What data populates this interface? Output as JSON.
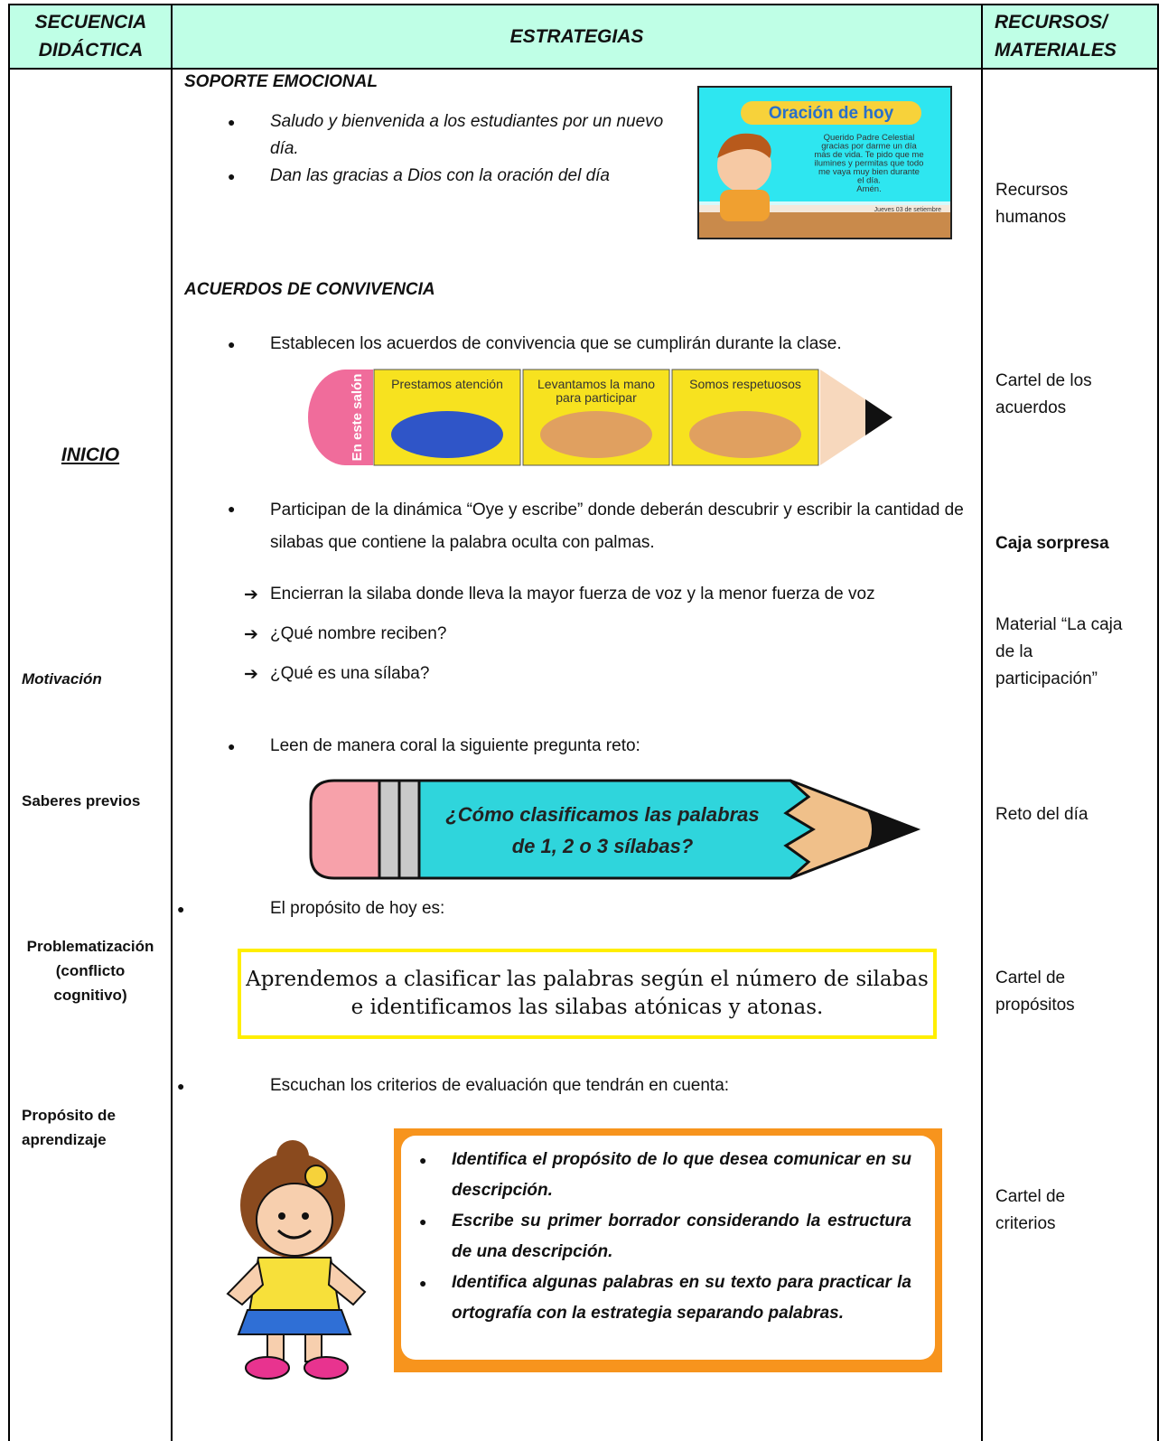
{
  "table": {
    "headers": [
      "SECUENCIA DIDÁCTICA",
      "ESTRATEGIAS",
      "RECURSOS/ MATERIALES"
    ],
    "sequence": {
      "main": "INICIO",
      "stages": [
        "Motivación",
        "Saberes previos",
        "Problematización (conflicto cognitivo)",
        "Propósito de aprendizaje"
      ]
    },
    "strategies": {
      "emotional": {
        "title": "SOPORTE EMOCIONAL",
        "bullets": [
          "Saludo y bienvenida a los estudiantes por un nuevo día.",
          "Dan las gracias a Dios con la oración del día"
        ],
        "prayer_card": {
          "title": "Oración de hoy",
          "lines": [
            "Querido Padre Celestial",
            "gracias por darme un día",
            "más de vida. Te pido que me",
            "ilumines y permitas que todo",
            "me vaya muy bien durante",
            "el día.",
            "Amén."
          ],
          "date": "Jueves 03 de setiembre"
        }
      },
      "agreements": {
        "title": "ACUERDOS DE CONVIVENCIA",
        "bullet": "Establecen los acuerdos de convivencia que se cumplirán durante la clase.",
        "banner": {
          "eraser": "En este salón",
          "items": [
            "Prestamos atención",
            "Levantamos la mano para participar",
            "Somos respetuosos"
          ]
        }
      },
      "dynamic": {
        "bullet": "Participan de la dinámica “Oye y escribe” donde deberán descubrir y escribir la cantidad de silabas que contiene la palabra oculta con palmas.",
        "arrows": [
          "Encierran la silaba donde lleva la mayor fuerza de voz y la menor fuerza de voz",
          "¿Qué nombre reciben?",
          "¿Qué es una sílaba?"
        ]
      },
      "challenge": {
        "bullet": "Leen de manera coral la siguiente pregunta reto:",
        "question": [
          "¿Cómo clasificamos las palabras",
          "de 1, 2 o 3 sílabas?"
        ]
      },
      "purpose": {
        "bullet": "El propósito de hoy es:",
        "text": "Aprendemos a clasificar las palabras según el número de silabas e identificamos las silabas atónicas y atonas."
      },
      "criteria": {
        "bullet": "Escuchan los criterios de evaluación que tendrán en cuenta:",
        "items": [
          "Identifica el propósito de lo que desea comunicar en su descripción.",
          "Escribe su primer borrador considerando la estructura de una descripción.",
          "Identifica algunas palabras en su texto para practicar la ortografía con la estrategia separando palabras."
        ]
      }
    },
    "resources": [
      "Recursos humanos",
      "Cartel de los acuerdos",
      "Caja sorpresa",
      "Material “La caja de la participación”",
      "Reto del día",
      "Cartel de propósitos",
      "Cartel de criterios"
    ]
  }
}
